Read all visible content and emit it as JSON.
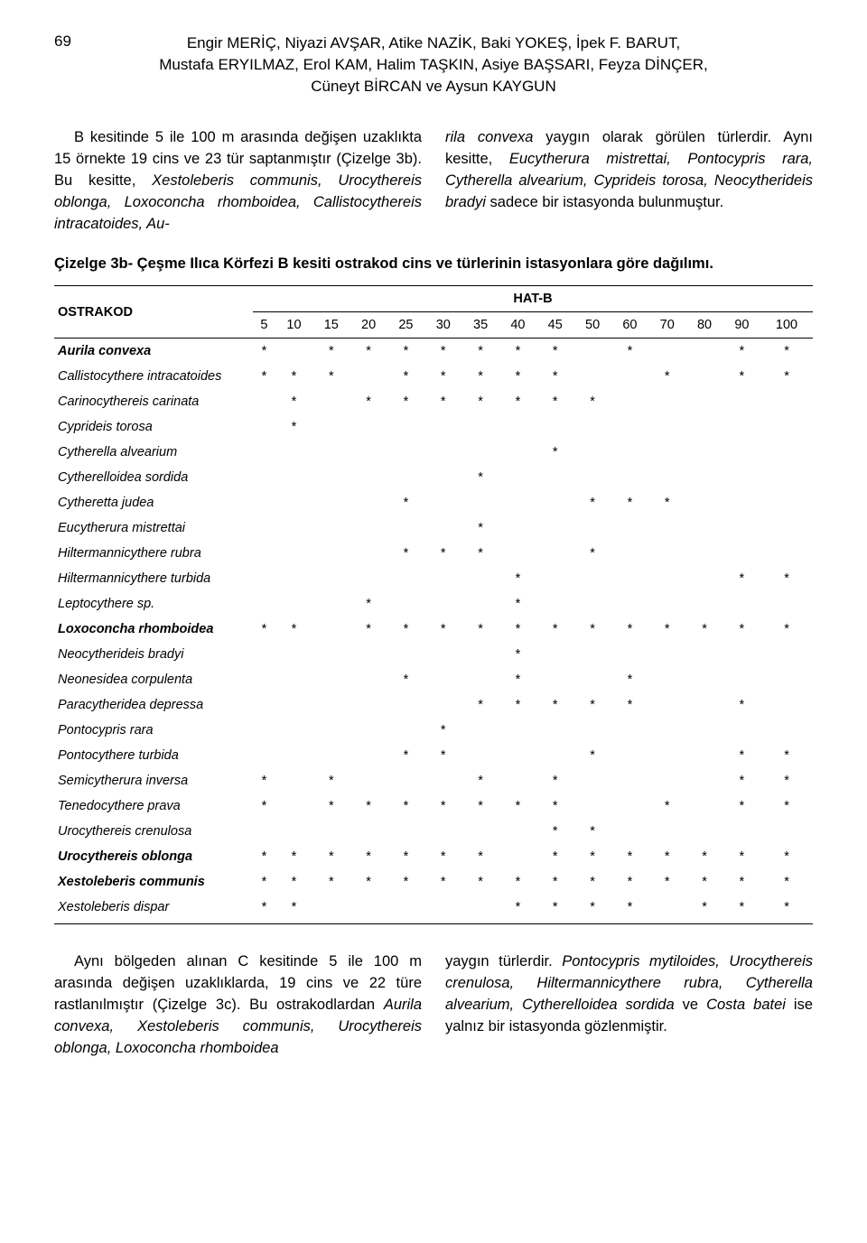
{
  "page_number": "69",
  "header": {
    "line1": "Engir MERİÇ, Niyazi AVŞAR, Atike NAZİK, Baki YOKEŞ, İpek F. BARUT,",
    "line2": "Mustafa ERYILMAZ, Erol KAM, Halim TAŞKIN, Asiye BAŞSARI, Feyza DİNÇER,",
    "line3": "Cüneyt BİRCAN ve Aysun KAYGUN"
  },
  "upper_left_para": {
    "pre": "B kesitinde 5 ile 100 m arasında değişen uzaklıkta 15 örnekte 19 cins ve 23 tür saptanmıştır (Çizelge 3b). Bu kesitte, ",
    "italic1": "Xestoleberis communis, Urocythereis oblonga, Loxoconcha rhomboidea, Callistocythereis intracatoides, Au-"
  },
  "upper_right_para": {
    "italic1": "rila convexa",
    "mid1": " yaygın olarak görülen türlerdir. Aynı kesitte, ",
    "italic2": "Eucytherura mistrettai, Pontocypris rara, Cytherella alvearium, Cyprideis torosa, Neocytherideis bradyi",
    "tail": " sadece bir istasyonda bulunmuştur."
  },
  "table_caption": "Çizelge 3b- Çeşme Ilıca Körfezi B kesiti ostrakod cins ve türlerinin istasyonlara göre dağılımı.",
  "table": {
    "corner": "OSTRAKOD",
    "group_header": "HAT-B",
    "columns": [
      "5",
      "10",
      "15",
      "20",
      "25",
      "30",
      "35",
      "40",
      "45",
      "50",
      "60",
      "70",
      "80",
      "90",
      "100"
    ],
    "rows": [
      {
        "label": "Aurila convexa",
        "bold": true,
        "marks": [
          "*",
          "",
          "*",
          "*",
          "*",
          "*",
          "*",
          "*",
          "*",
          "",
          "*",
          "",
          "",
          "*",
          "*"
        ]
      },
      {
        "label": "Callistocythere intracatoides",
        "bold": false,
        "marks": [
          "*",
          "*",
          "*",
          "",
          "*",
          "*",
          "*",
          "*",
          "*",
          "",
          "",
          "*",
          "",
          "*",
          "*"
        ]
      },
      {
        "label": "Carinocythereis carinata",
        "bold": false,
        "marks": [
          "",
          "*",
          "",
          "*",
          "*",
          "*",
          "*",
          "*",
          "*",
          "*",
          "",
          "",
          "",
          "",
          ""
        ]
      },
      {
        "label": "Cyprideis torosa",
        "bold": false,
        "marks": [
          "",
          "*",
          "",
          "",
          "",
          "",
          "",
          "",
          "",
          "",
          "",
          "",
          "",
          "",
          ""
        ]
      },
      {
        "label": "Cytherella alvearium",
        "bold": false,
        "marks": [
          "",
          "",
          "",
          "",
          "",
          "",
          "",
          "",
          "*",
          "",
          "",
          "",
          "",
          "",
          ""
        ]
      },
      {
        "label": "Cytherelloidea sordida",
        "bold": false,
        "marks": [
          "",
          "",
          "",
          "",
          "",
          "",
          "*",
          "",
          "",
          "",
          "",
          "",
          "",
          "",
          ""
        ]
      },
      {
        "label": "Cytheretta judea",
        "bold": false,
        "marks": [
          "",
          "",
          "",
          "",
          "*",
          "",
          "",
          "",
          "",
          "*",
          "*",
          "*",
          "",
          "",
          ""
        ]
      },
      {
        "label": "Eucytherura mistrettai",
        "bold": false,
        "marks": [
          "",
          "",
          "",
          "",
          "",
          "",
          "*",
          "",
          "",
          "",
          "",
          "",
          "",
          "",
          ""
        ]
      },
      {
        "label": "Hiltermannicythere rubra",
        "bold": false,
        "marks": [
          "",
          "",
          "",
          "",
          "*",
          "*",
          "*",
          "",
          "",
          "*",
          "",
          "",
          "",
          "",
          ""
        ]
      },
      {
        "label": "Hiltermannicythere turbida",
        "bold": false,
        "marks": [
          "",
          "",
          "",
          "",
          "",
          "",
          "",
          "*",
          "",
          "",
          "",
          "",
          "",
          "*",
          "*"
        ]
      },
      {
        "label": "Leptocythere sp.",
        "bold": false,
        "marks": [
          "",
          "",
          "",
          "*",
          "",
          "",
          "",
          "*",
          "",
          "",
          "",
          "",
          "",
          "",
          ""
        ]
      },
      {
        "label": "Loxoconcha rhomboidea",
        "bold": true,
        "marks": [
          "*",
          "*",
          "",
          "*",
          "*",
          "*",
          "*",
          "*",
          "*",
          "*",
          "*",
          "*",
          "*",
          "*",
          "*"
        ]
      },
      {
        "label": "Neocytherideis bradyi",
        "bold": false,
        "marks": [
          "",
          "",
          "",
          "",
          "",
          "",
          "",
          "*",
          "",
          "",
          "",
          "",
          "",
          "",
          ""
        ]
      },
      {
        "label": "Neonesidea corpulenta",
        "bold": false,
        "marks": [
          "",
          "",
          "",
          "",
          "*",
          "",
          "",
          "*",
          "",
          "",
          "*",
          "",
          "",
          "",
          ""
        ]
      },
      {
        "label": "Paracytheridea depressa",
        "bold": false,
        "marks": [
          "",
          "",
          "",
          "",
          "",
          "",
          "*",
          "*",
          "*",
          "*",
          "*",
          "",
          "",
          "*",
          ""
        ]
      },
      {
        "label": "Pontocypris rara",
        "bold": false,
        "marks": [
          "",
          "",
          "",
          "",
          "",
          "*",
          "",
          "",
          "",
          "",
          "",
          "",
          "",
          "",
          ""
        ]
      },
      {
        "label": "Pontocythere turbida",
        "bold": false,
        "marks": [
          "",
          "",
          "",
          "",
          "*",
          "*",
          "",
          "",
          "",
          "*",
          "",
          "",
          "",
          "*",
          "*"
        ]
      },
      {
        "label": "Semicytherura inversa",
        "bold": false,
        "marks": [
          "*",
          "",
          "*",
          "",
          "",
          "",
          "*",
          "",
          "*",
          "",
          "",
          "",
          "",
          "*",
          "*"
        ]
      },
      {
        "label": "Tenedocythere prava",
        "bold": false,
        "marks": [
          "*",
          "",
          "*",
          "*",
          "*",
          "*",
          "*",
          "*",
          "*",
          "",
          "",
          "*",
          "",
          "*",
          "*"
        ]
      },
      {
        "label": "Urocythereis crenulosa",
        "bold": false,
        "marks": [
          "",
          "",
          "",
          "",
          "",
          "",
          "",
          "",
          "*",
          "*",
          "",
          "",
          "",
          "",
          ""
        ]
      },
      {
        "label": "Urocythereis oblonga",
        "bold": true,
        "marks": [
          "*",
          "*",
          "*",
          "*",
          "*",
          "*",
          "*",
          "",
          "*",
          "*",
          "*",
          "*",
          "*",
          "*",
          "*"
        ]
      },
      {
        "label": "Xestoleberis communis",
        "bold": true,
        "marks": [
          "*",
          "*",
          "*",
          "*",
          "*",
          "*",
          "*",
          "*",
          "*",
          "*",
          "*",
          "*",
          "*",
          "*",
          "*"
        ]
      },
      {
        "label": "Xestoleberis dispar",
        "bold": false,
        "marks": [
          "*",
          "*",
          "",
          "",
          "",
          "",
          "",
          "*",
          "*",
          "*",
          "*",
          "",
          "*",
          "*",
          "*"
        ]
      }
    ]
  },
  "lower_left_para": {
    "pre": "Aynı bölgeden alınan C kesitinde 5 ile 100 m arasında değişen uzaklıklarda, 19 cins ve 22 türe rastlanılmıştır (Çizelge 3c). Bu ostrakodlardan ",
    "italic1": "Aurila convexa, Xestoleberis communis, Urocythereis oblonga, Loxoconcha rhomboidea"
  },
  "lower_right_para": {
    "pre": "yaygın türlerdir. ",
    "italic1": "Pontocypris mytiloides, Urocythereis crenulosa, Hiltermannicythere rubra, Cytherella alvearium, Cytherelloidea sordida",
    "mid": " ve ",
    "italic2": "Costa batei",
    "tail": " ise yalnız bir istasyonda gözlenmiştir."
  }
}
